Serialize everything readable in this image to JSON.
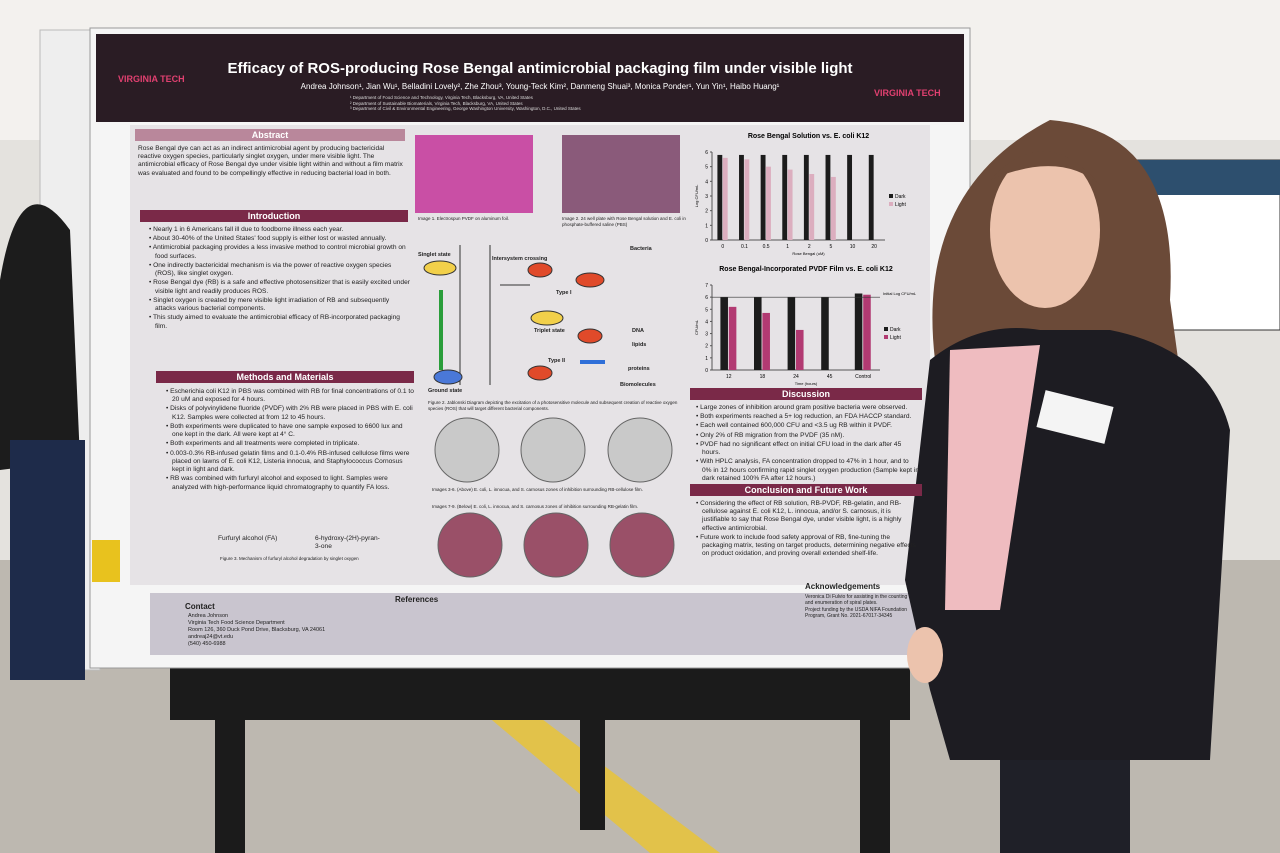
{
  "poster": {
    "header": {
      "logo_left": "VIRGINIA TECH",
      "logo_right": "VIRGINIA TECH",
      "title": "Efficacy of ROS-producing Rose Bengal antimicrobial packaging film under visible light",
      "authors": "Andrea Johnson¹, Jian Wu¹, Belladini Lovely², Zhe Zhou³, Young-Teck Kim², Danmeng Shuai³, Monica Ponder¹, Yun Yin¹, Haibo Huang¹",
      "affiliations": [
        "¹ Department of Food Science and Technology, Virginia Tech, Blacksburg, VA, United States",
        "² Department of Sustainable Biomaterials, Virginia Tech, Blacksburg, VA, United States",
        "³ Department of Civil & Environmental Engineering, George Washington University, Washington, D.C., United States"
      ]
    },
    "abstract": {
      "heading": "Abstract",
      "text": "Rose Bengal dye can act as an indirect antimicrobial agent by producing bactericidal reactive oxygen species, particularly singlet oxygen, under mere visible light. The antimicrobial efficacy of Rose Bengal dye under visible light within and without a film matrix was evaluated and found to be compellingly effective in reducing bacterial load in both."
    },
    "introduction": {
      "heading": "Introduction",
      "bullets": [
        "Nearly 1 in 6 Americans fall ill due to foodborne illness each year.",
        "About 30-40% of the United States' food supply is either lost or wasted annually.",
        "Antimicrobial packaging provides a less invasive method to control microbial growth on food surfaces.",
        "One indirectly bactericidal mechanism is via the power of reactive oxygen species (ROS), like singlet oxygen.",
        "Rose Bengal dye (RB) is a safe and effective photosensitizer that is easily excited under visible light and readily produces ROS.",
        "Singlet oxygen is created by mere visible light irradiation of RB and subsequently attacks various bacterial components.",
        "This study aimed to evaluate the antimicrobial efficacy of RB-incorporated packaging film."
      ]
    },
    "methods": {
      "heading": "Methods and Materials",
      "bullets": [
        "Escherichia coli K12 in PBS was combined with RB for final concentrations of 0.1 to 20 uM and exposed for 4 hours.",
        "Disks of polyvinylidene fluoride (PVDF) with 2% RB were placed in PBS with E. coli K12. Samples were collected at from 12 to 45 hours.",
        "Both experiments were duplicated to have one sample exposed to 6600 lux and one kept in the dark. All were kept at 4° C.",
        "Both experiments and all treatments were completed in triplicate.",
        "0.003-0.3% RB-infused gelatin films and 0.1-0.4% RB-infused cellulose films were placed on lawns of E. coli K12, Listeria innocua, and Staphylococcus Cornosus kept in light and dark.",
        "RB was combined with furfuryl alcohol and exposed to light. Samples were analyzed with high-performance liquid chromatography to quantify FA loss."
      ],
      "formula_left": "Furfuryl alcohol (FA)",
      "formula_right": "6-hydroxy-(2H)-pyran-3-one",
      "caption": "Figure 3. Mechanism of furfuryl alcohol degradation by singlet oxygen"
    },
    "captions": [
      "Image 1. Electrospun PVDF on aluminum foil.",
      "Image 2. 24 well plate with Rose Bengal solution and E. coli in phosphate-buffered saline (PBS)",
      "Figure 2. Jablonski Diagram depicting the excitation of a photosensitive molecule and subsequent creation of reactive oxygen species (ROS) that will target different bacterial components.",
      "Images 3-6. (Above) E. coli, L. innocua, and S. carnosus zones of inhibition surrounding RB-cellulose film.",
      "Images 7-9. (Below) E. coli, L. innocua, and S. carnosus zones of inhibition surrounding RB-gelatin film."
    ],
    "diagram": {
      "singlet": "Singlet state",
      "isc": "Intersystem crossing",
      "triplet": "Triplet state",
      "ground": "Ground state",
      "type1": "Type I",
      "type2": "Type II",
      "bacteria": "Bacteria",
      "dna": "DNA",
      "lipids": "lipids",
      "proteins": "proteins",
      "biomolecules": "Biomolecules"
    },
    "charts": [
      {
        "type": "bar",
        "title": "Rose Bengal Solution vs. E. coli K12",
        "y_label": "Log CFU/mL",
        "x_label": "Rose Bengal (uM)",
        "categories": [
          "0",
          "0.1",
          "0.5",
          "1",
          "2",
          "5",
          "10",
          "20"
        ],
        "series": [
          {
            "name": "Dark",
            "color": "#1c1c1c",
            "values": [
              5.8,
              5.8,
              5.8,
              5.8,
              5.8,
              5.8,
              5.8,
              5.8
            ]
          },
          {
            "name": "Light",
            "color": "#dcaebf",
            "values": [
              5.6,
              5.5,
              5.0,
              4.8,
              4.5,
              4.3,
              0,
              0
            ]
          }
        ],
        "ylim": [
          0,
          6
        ],
        "yticks": [
          0,
          1,
          2,
          3,
          4,
          5,
          6
        ]
      },
      {
        "type": "bar",
        "title": "Rose Bengal-Incorporated PVDF Film vs. E. coli K12",
        "y_label": "CFU/mL",
        "x_label": "Time (hours)",
        "annotation": "Initial Log CFU/mL",
        "categories": [
          "12",
          "18",
          "24",
          "45",
          "Control"
        ],
        "series": [
          {
            "name": "Dark",
            "color": "#1c1c1c",
            "values": [
              6.0,
              6.0,
              6.0,
              6.0,
              6.3
            ]
          },
          {
            "name": "Light",
            "color": "#b23a72",
            "values": [
              5.2,
              4.7,
              3.3,
              0,
              6.2
            ]
          }
        ],
        "initial": 6.0,
        "ylim": [
          0,
          7
        ],
        "yticks": [
          0,
          1,
          2,
          3,
          4,
          5,
          6,
          7
        ]
      }
    ],
    "discussion": {
      "heading": "Discussion",
      "bullets": [
        "Large zones of inhibition around gram positive bacteria were observed.",
        "Both experiments reached a 5+ log reduction, an FDA HACCP standard.",
        "Each well contained 600,000 CFU and <3.5 ug RB within it PVDF.",
        "Only 2% of RB migration from the PVDF (35 nM).",
        "PVDF had no significant effect on initial CFU load in the dark after 45 hours.",
        "With HPLC analysis, FA concentration dropped to 47% in 1 hour, and to 0% in 12 hours confirming rapid singlet oxygen production (Sample kept in dark retained 100% FA after 12 hours.)"
      ]
    },
    "conclusion": {
      "heading": "Conclusion and Future Work",
      "bullets": [
        "Considering the effect of RB solution, RB-PVDF, RB-gelatin, and RB-cellulose against E. coli K12, L. innocua, and/or S. carnosus, it is justifiable to say that Rose Bengal dye, under visible light, is a highly effective antimicrobial.",
        "Future work to include food safety approval of RB, fine-tuning the packaging matrix, testing on target products, determining negative effects on product oxidation, and proving overall extended shelf-life."
      ]
    },
    "contact": {
      "heading": "Contact",
      "lines": [
        "Andrea Johnson",
        "Virginia Tech Food Science Department",
        "Room 126, 360 Duck Pond Drive, Blacksburg, VA 24061",
        "andreaj24@vt.edu",
        "(540) 450-6988"
      ]
    },
    "references": {
      "heading": "References"
    },
    "acknowledgements": {
      "heading": "Acknowledgements",
      "lines": [
        "Veronica Di Fulvio for assisting in the counting and enumeration of spiral plates.",
        "Project funding by the USDA NIFA Foundation Program, Grant No. 2021-67017-34345"
      ]
    }
  }
}
